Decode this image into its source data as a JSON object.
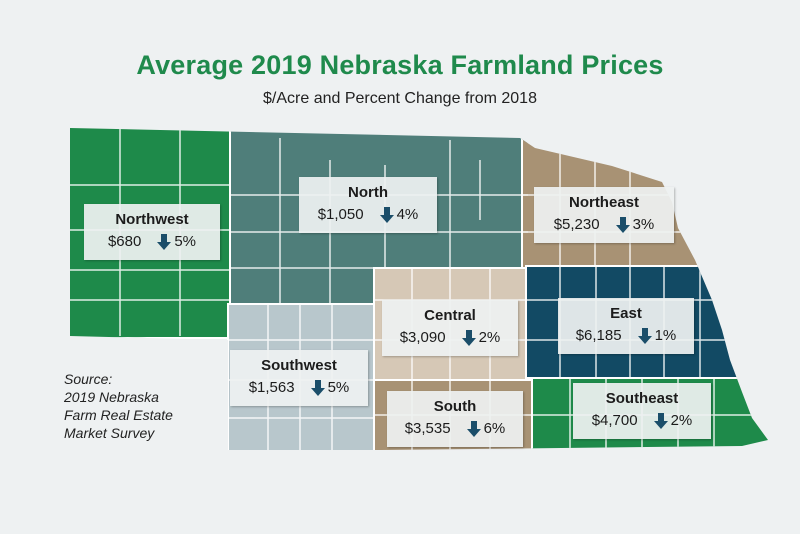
{
  "title": "Average 2019 Nebraska Farmland Prices",
  "subtitle": "$/Acre and Percent Change from 2018",
  "colors": {
    "northwest": "#1e8a4a",
    "north": "#4f7e7a",
    "northeast": "#a89274",
    "central": "#d6c8b6",
    "east": "#124a64",
    "southwest": "#b8c7cc",
    "south": "#a89274",
    "southeast": "#1e8a4a",
    "arrow": "#1b4e6a"
  },
  "regions": [
    {
      "name": "Northwest",
      "price": "$680",
      "change": "5%",
      "direction": "down",
      "icon": "down-arrow-icon"
    },
    {
      "name": "North",
      "price": "$1,050",
      "change": "4%",
      "direction": "down",
      "icon": "down-arrow-icon"
    },
    {
      "name": "Northeast",
      "price": "$5,230",
      "change": "3%",
      "direction": "down",
      "icon": "down-arrow-icon"
    },
    {
      "name": "Central",
      "price": "$3,090",
      "change": "2%",
      "direction": "down",
      "icon": "down-arrow-icon"
    },
    {
      "name": "East",
      "price": "$6,185",
      "change": "1%",
      "direction": "down",
      "icon": "down-arrow-icon"
    },
    {
      "name": "Southwest",
      "price": "$1,563",
      "change": "5%",
      "direction": "down",
      "icon": "down-arrow-icon"
    },
    {
      "name": "South",
      "price": "$3,535",
      "change": "6%",
      "direction": "down",
      "icon": "down-arrow-icon"
    },
    {
      "name": "Southeast",
      "price": "$4,700",
      "change": "2%",
      "direction": "down",
      "icon": "down-arrow-icon"
    }
  ],
  "source": {
    "lines": [
      "Source:",
      "2019 Nebraska",
      "Farm Real Estate",
      "Market Survey"
    ]
  }
}
